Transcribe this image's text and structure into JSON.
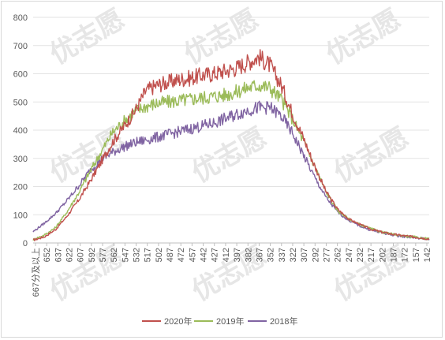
{
  "watermark": "优志愿",
  "chart_data": {
    "type": "line",
    "title": "",
    "xlabel": "",
    "ylabel": "",
    "ylim": [
      0,
      800
    ],
    "yticks": [
      0,
      100,
      200,
      300,
      400,
      500,
      600,
      700,
      800
    ],
    "xlim": [
      667,
      140
    ],
    "xtick_labels": [
      "667分及以上",
      "652",
      "637",
      "622",
      "607",
      "592",
      "577",
      "562",
      "547",
      "532",
      "517",
      "502",
      "487",
      "472",
      "457",
      "442",
      "427",
      "412",
      "397",
      "382",
      "367",
      "352",
      "337",
      "322",
      "307",
      "292",
      "277",
      "262",
      "247",
      "232",
      "217",
      "202",
      "187",
      "172",
      "157",
      "142"
    ],
    "grid": "horizontal",
    "legend": "bottom",
    "series": [
      {
        "name": "2020年",
        "color": "#c0504d",
        "x": [
          667,
          652,
          637,
          622,
          607,
          592,
          577,
          562,
          547,
          532,
          527,
          517,
          502,
          487,
          472,
          457,
          442,
          427,
          412,
          397,
          382,
          367,
          352,
          337,
          322,
          307,
          292,
          277,
          262,
          247,
          232,
          217,
          202,
          187,
          172,
          157,
          142
        ],
        "y": [
          10,
          22,
          48,
          95,
          150,
          215,
          285,
          355,
          410,
          465,
          490,
          540,
          560,
          570,
          580,
          585,
          595,
          600,
          610,
          620,
          640,
          660,
          630,
          560,
          460,
          370,
          270,
          180,
          120,
          85,
          65,
          48,
          38,
          30,
          25,
          20,
          15
        ]
      },
      {
        "name": "2019年",
        "color": "#9bbb59",
        "x": [
          667,
          652,
          637,
          622,
          607,
          592,
          577,
          562,
          547,
          532,
          517,
          502,
          487,
          472,
          457,
          442,
          427,
          412,
          397,
          382,
          367,
          352,
          337,
          322,
          307,
          292,
          277,
          262,
          247,
          232,
          217,
          202,
          187,
          172,
          157,
          142
        ],
        "y": [
          12,
          28,
          55,
          110,
          175,
          250,
          320,
          390,
          430,
          465,
          485,
          495,
          500,
          505,
          510,
          515,
          520,
          525,
          535,
          550,
          560,
          550,
          510,
          440,
          360,
          270,
          180,
          115,
          85,
          65,
          50,
          38,
          30,
          25,
          20,
          15
        ]
      },
      {
        "name": "2018年",
        "color": "#8064a2",
        "x": [
          667,
          652,
          637,
          622,
          607,
          592,
          577,
          562,
          547,
          532,
          517,
          502,
          487,
          472,
          457,
          442,
          427,
          412,
          397,
          382,
          367,
          352,
          337,
          322,
          307,
          292,
          277,
          262,
          247,
          232,
          217,
          202,
          187,
          172,
          157,
          142
        ],
        "y": [
          40,
          70,
          105,
          150,
          200,
          255,
          295,
          320,
          340,
          355,
          365,
          375,
          385,
          395,
          405,
          415,
          425,
          440,
          455,
          470,
          480,
          480,
          450,
          390,
          310,
          230,
          160,
          110,
          80,
          60,
          45,
          35,
          28,
          22,
          18,
          14
        ]
      }
    ]
  }
}
